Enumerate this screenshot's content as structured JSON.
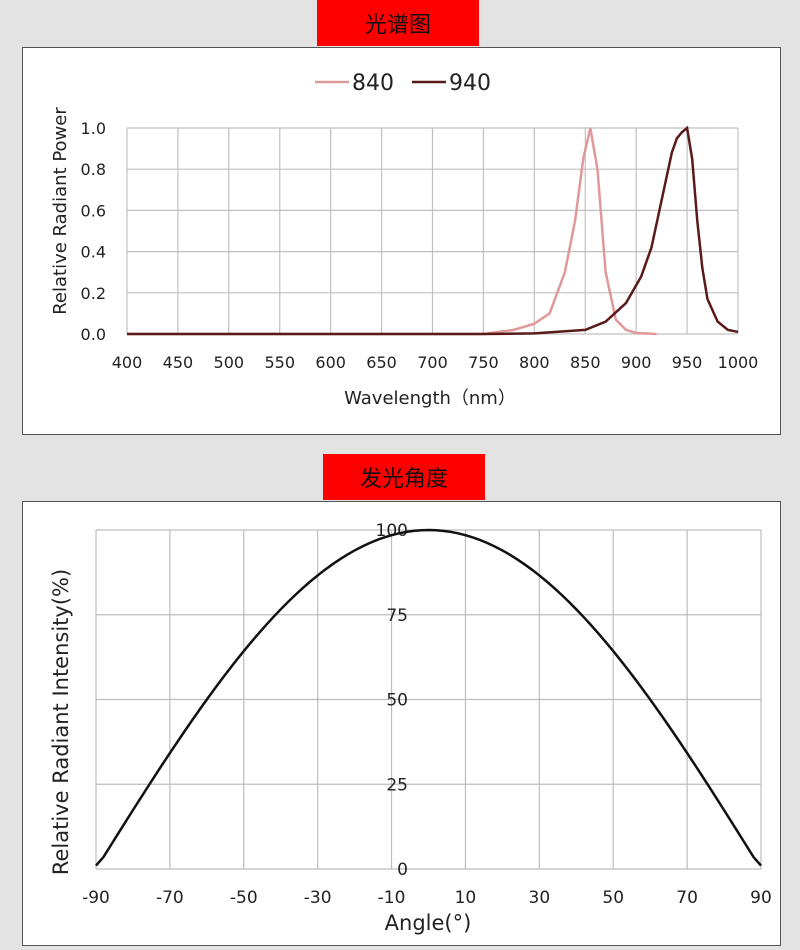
{
  "chart_data": [
    {
      "banner": "光谱图",
      "type": "line",
      "xlabel": "Wavelength（nm）",
      "ylabel": "Relative Radiant Power",
      "xlim": [
        400,
        1000
      ],
      "ylim": [
        0,
        1.0
      ],
      "xticks": [
        400,
        450,
        500,
        550,
        600,
        650,
        700,
        750,
        800,
        850,
        900,
        950,
        1000
      ],
      "yticks": [
        "0.0",
        "0.2",
        "0.4",
        "0.6",
        "0.8",
        "1.0"
      ],
      "grid": true,
      "legend": "top",
      "series": [
        {
          "name": "840",
          "color": "#e0999a",
          "x": [
            400,
            750,
            780,
            800,
            815,
            830,
            840,
            848,
            855,
            862,
            870,
            880,
            890,
            900,
            920
          ],
          "y": [
            0,
            0,
            0.02,
            0.05,
            0.1,
            0.3,
            0.55,
            0.85,
            1.0,
            0.8,
            0.3,
            0.07,
            0.02,
            0.005,
            0
          ]
        },
        {
          "name": "940",
          "color": "#5a1a1a",
          "x": [
            400,
            750,
            800,
            850,
            870,
            890,
            905,
            915,
            925,
            935,
            940,
            945,
            950,
            955,
            960,
            965,
            970,
            980,
            990,
            1000
          ],
          "y": [
            0,
            0,
            0.003,
            0.02,
            0.06,
            0.15,
            0.28,
            0.42,
            0.65,
            0.88,
            0.95,
            0.98,
            1.0,
            0.85,
            0.55,
            0.32,
            0.17,
            0.06,
            0.02,
            0.01
          ]
        }
      ]
    },
    {
      "banner": "发光角度",
      "type": "line",
      "xlabel": "Angle(°)",
      "ylabel": "Relative Radiant Intensity(%)",
      "xlim": [
        -90,
        90
      ],
      "ylim": [
        0,
        100
      ],
      "xticks": [
        -90,
        -70,
        -50,
        -30,
        -10,
        10,
        30,
        50,
        70,
        90
      ],
      "yticks": [
        "0",
        "25",
        "50",
        "75",
        "100"
      ],
      "grid": true,
      "series": [
        {
          "color": "#111111",
          "x": [
            -90,
            -80,
            -70,
            -60,
            -50,
            -40,
            -30,
            -20,
            -10,
            0,
            10,
            20,
            30,
            40,
            50,
            60,
            70,
            80,
            90
          ],
          "y": [
            1,
            17,
            34,
            50,
            64,
            77,
            87,
            94,
            98.5,
            100,
            98.5,
            94,
            87,
            77,
            64,
            50,
            34,
            17,
            1
          ]
        }
      ]
    }
  ]
}
